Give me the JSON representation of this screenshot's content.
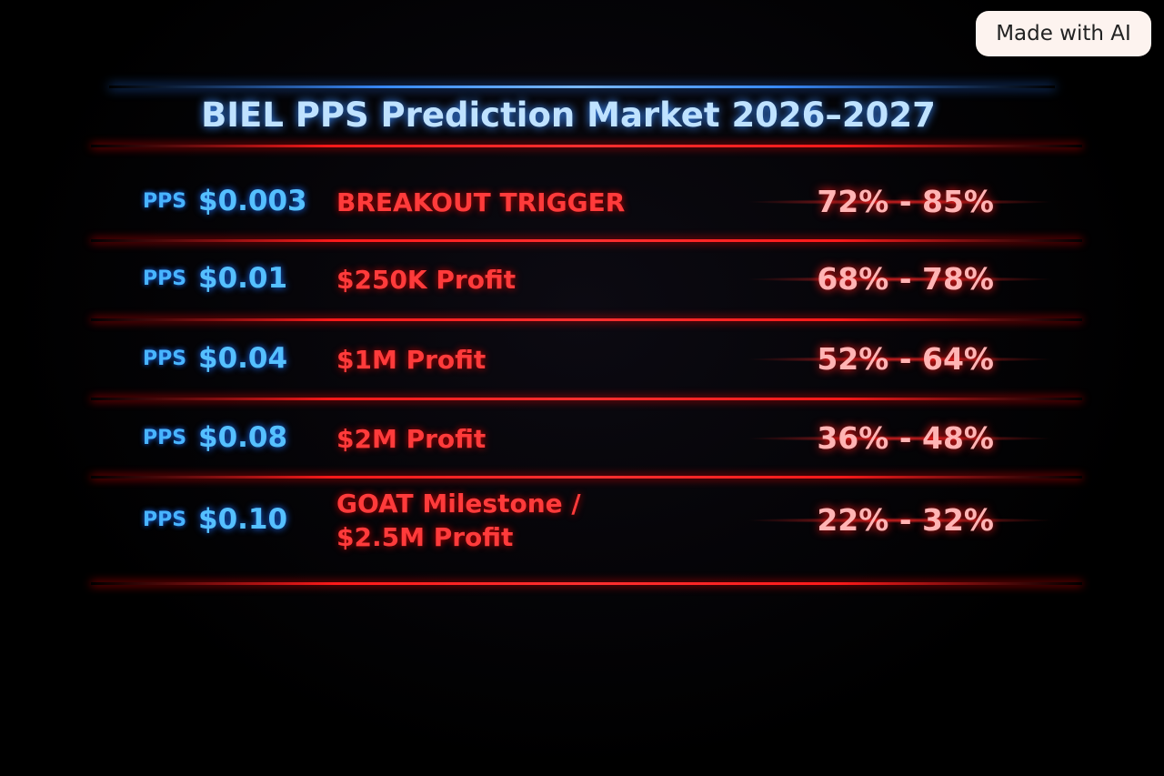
{
  "badge": "Made with AI",
  "title": "BIEL PPS Prediction Market 2026–2027",
  "rows": [
    {
      "prefix": "PPS",
      "price": "$0.003",
      "milestone": [
        "BREAKOUT TRIGGER"
      ],
      "range": "72% - 85%"
    },
    {
      "prefix": "PPS",
      "price": "$0.01",
      "milestone": [
        "$250K Profit"
      ],
      "range": "68% - 78%"
    },
    {
      "prefix": "PPS",
      "price": "$0.04",
      "milestone": [
        "$1M Profit"
      ],
      "range": "52% - 64%"
    },
    {
      "prefix": "PPS",
      "price": "$0.08",
      "milestone": [
        "$2M Profit"
      ],
      "range": "36% - 48%"
    },
    {
      "prefix": "PPS",
      "price": "$0.10",
      "milestone": [
        "GOAT Milestone /",
        "$2.5M Profit"
      ],
      "range": "22% - 32%"
    }
  ]
}
